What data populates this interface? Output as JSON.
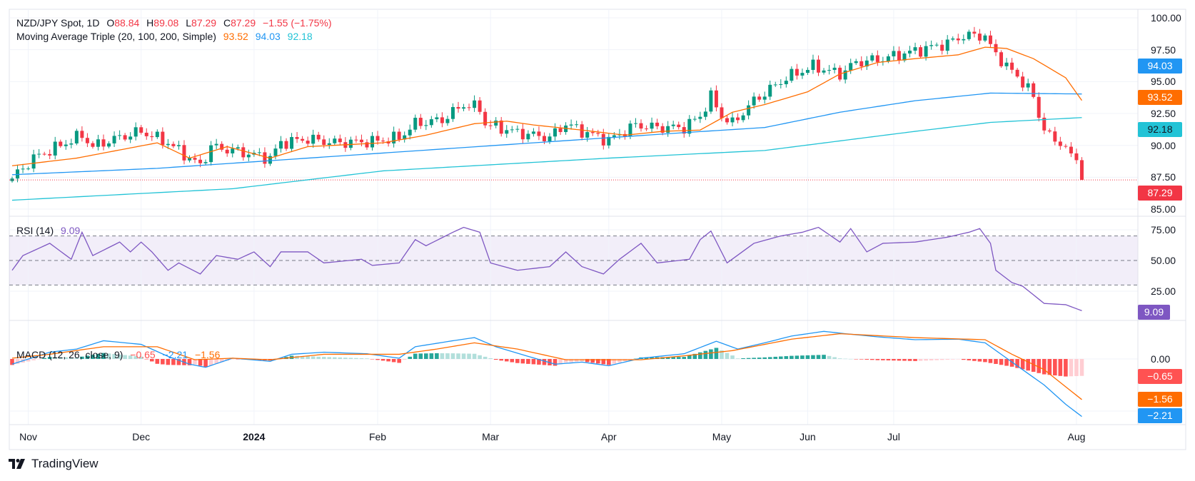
{
  "header": {
    "symbol": "NZD/JPY Spot, 1D",
    "o_label": "O",
    "o": "88.84",
    "h_label": "H",
    "h": "89.08",
    "l_label": "L",
    "l": "87.29",
    "c_label": "C",
    "c": "87.29",
    "change": "−1.55 (−1.75%)",
    "ma_label": "Moving Average Triple (20, 100, 200, Simple)",
    "ma20": "93.52",
    "ma100": "94.03",
    "ma200": "92.18",
    "rsi_label": "RSI (14)",
    "rsi": "9.09",
    "macd_label": "MACD (12, 26, close, 9)",
    "macd_hist": "−0.65",
    "macd": "−2.21",
    "macd_signal": "−1.56"
  },
  "badges": {
    "ma100": "94.03",
    "ma20": "93.52",
    "ma200": "92.18",
    "price": "87.29",
    "rsi": "9.09",
    "hist": "−0.65",
    "signal": "−1.56",
    "macd": "−2.21"
  },
  "logo": "TradingView",
  "colors": {
    "up": "#089981",
    "down": "#f23645",
    "ma20": "#ff6d00",
    "ma100": "#2196f3",
    "ma200": "#22c3d6",
    "rsi": "#7e57c2",
    "macd": "#2196f3",
    "signal": "#ff6d00",
    "hist_up_strong": "#26a69a",
    "hist_up_weak": "#b2dfdb",
    "hist_down_strong": "#ff5252",
    "hist_down_weak": "#ffcdd2"
  },
  "chart_data": {
    "type": "candlestick",
    "title": "NZD/JPY Spot, 1D",
    "bar_count": 200,
    "x_ticks": [
      {
        "label": "Nov",
        "bar": 3
      },
      {
        "label": "Dec",
        "bar": 24
      },
      {
        "label": "2024",
        "bar": 45,
        "bold": true
      },
      {
        "label": "Feb",
        "bar": 68
      },
      {
        "label": "Mar",
        "bar": 89
      },
      {
        "label": "Apr",
        "bar": 111
      },
      {
        "label": "May",
        "bar": 132
      },
      {
        "label": "Jun",
        "bar": 148
      },
      {
        "label": "Jul",
        "bar": 164
      },
      {
        "label": "Aug",
        "bar": 198
      }
    ],
    "price_axis": {
      "ylim": [
        84.2,
        100.6
      ],
      "ticks": [
        "100.00",
        "97.50",
        "95.00",
        "92.50",
        "90.00",
        "87.50",
        "85.00"
      ],
      "tick_values": [
        100,
        97.5,
        95,
        92.5,
        90,
        87.5,
        85
      ]
    },
    "close_anchors": [
      [
        0,
        87.4
      ],
      [
        4,
        89.0
      ],
      [
        7,
        89.6
      ],
      [
        13,
        90.8
      ],
      [
        15,
        89.9
      ],
      [
        19,
        90.5
      ],
      [
        24,
        91.1
      ],
      [
        29,
        90.2
      ],
      [
        33,
        89.0
      ],
      [
        35,
        88.4
      ],
      [
        37,
        89.9
      ],
      [
        41,
        89.6
      ],
      [
        48,
        89.0
      ],
      [
        50,
        90.2
      ],
      [
        55,
        90.5
      ],
      [
        60,
        90.2
      ],
      [
        67,
        90.3
      ],
      [
        72,
        90.6
      ],
      [
        75,
        91.7
      ],
      [
        80,
        92.0
      ],
      [
        84,
        93.2
      ],
      [
        87,
        92.9
      ],
      [
        88,
        91.7
      ],
      [
        94,
        91.0
      ],
      [
        100,
        90.6
      ],
      [
        103,
        91.7
      ],
      [
        106,
        91.1
      ],
      [
        111,
        90.4
      ],
      [
        116,
        91.6
      ],
      [
        120,
        91.4
      ],
      [
        125,
        91.4
      ],
      [
        128,
        92.3
      ],
      [
        130,
        93.8
      ],
      [
        132,
        92.3
      ],
      [
        134,
        91.7
      ],
      [
        138,
        93.5
      ],
      [
        144,
        95.3
      ],
      [
        149,
        96.2
      ],
      [
        154,
        95.6
      ],
      [
        157,
        96.5
      ],
      [
        162,
        96.8
      ],
      [
        168,
        97.4
      ],
      [
        174,
        98.0
      ],
      [
        177,
        98.6
      ],
      [
        181,
        98.6
      ],
      [
        182,
        97.7
      ],
      [
        185,
        96.2
      ],
      [
        188,
        95.0
      ],
      [
        190,
        93.8
      ],
      [
        191,
        92.3
      ],
      [
        193,
        90.6
      ],
      [
        195,
        90.2
      ],
      [
        196,
        89.9
      ],
      [
        198,
        88.84
      ]
    ],
    "last_bar": {
      "open": 88.84,
      "high": 89.08,
      "low": 87.29,
      "close": 87.29
    },
    "ma20_anchors": [
      [
        0,
        88.4
      ],
      [
        12,
        89.0
      ],
      [
        27,
        90.2
      ],
      [
        33,
        89.0
      ],
      [
        40,
        89.9
      ],
      [
        48,
        89.0
      ],
      [
        55,
        89.9
      ],
      [
        69,
        90.2
      ],
      [
        77,
        90.8
      ],
      [
        86,
        91.7
      ],
      [
        92,
        91.9
      ],
      [
        97,
        91.6
      ],
      [
        106,
        91.2
      ],
      [
        114,
        90.8
      ],
      [
        121,
        91.1
      ],
      [
        128,
        91.2
      ],
      [
        134,
        92.6
      ],
      [
        140,
        93.2
      ],
      [
        148,
        94.2
      ],
      [
        154,
        95.6
      ],
      [
        161,
        96.5
      ],
      [
        168,
        96.8
      ],
      [
        176,
        97.1
      ],
      [
        181,
        97.7
      ],
      [
        185,
        97.6
      ],
      [
        190,
        96.8
      ],
      [
        196,
        95.3
      ],
      [
        199,
        93.52
      ]
    ],
    "ma100_anchors": [
      [
        0,
        87.7
      ],
      [
        27,
        88.2
      ],
      [
        69,
        89.4
      ],
      [
        111,
        90.6
      ],
      [
        125,
        91.0
      ],
      [
        140,
        91.4
      ],
      [
        154,
        92.6
      ],
      [
        168,
        93.5
      ],
      [
        182,
        94.1
      ],
      [
        199,
        94.03
      ]
    ],
    "ma200_anchors": [
      [
        0,
        85.7
      ],
      [
        41,
        86.6
      ],
      [
        69,
        88.0
      ],
      [
        111,
        89.0
      ],
      [
        140,
        89.6
      ],
      [
        168,
        91.1
      ],
      [
        182,
        91.8
      ],
      [
        199,
        92.18
      ]
    ],
    "rsi": {
      "ylim": [
        0,
        85
      ],
      "ticks": [
        "75.00",
        "50.00",
        "25.00"
      ],
      "tick_values": [
        75,
        50,
        25
      ],
      "bands": [
        70,
        50,
        30
      ],
      "anchors": [
        [
          0,
          42
        ],
        [
          2,
          54
        ],
        [
          7,
          64
        ],
        [
          11,
          51
        ],
        [
          13,
          73
        ],
        [
          15,
          54
        ],
        [
          20,
          65
        ],
        [
          22,
          57
        ],
        [
          24,
          65
        ],
        [
          26,
          57
        ],
        [
          29,
          42
        ],
        [
          31,
          48
        ],
        [
          35,
          39
        ],
        [
          38,
          54
        ],
        [
          42,
          51
        ],
        [
          45,
          57
        ],
        [
          48,
          45
        ],
        [
          50,
          57
        ],
        [
          55,
          57
        ],
        [
          58,
          48
        ],
        [
          65,
          51
        ],
        [
          67,
          46
        ],
        [
          72,
          48
        ],
        [
          75,
          67
        ],
        [
          77,
          62
        ],
        [
          82,
          73
        ],
        [
          84,
          77
        ],
        [
          87,
          73
        ],
        [
          89,
          48
        ],
        [
          94,
          42
        ],
        [
          100,
          45
        ],
        [
          103,
          57
        ],
        [
          106,
          45
        ],
        [
          110,
          39
        ],
        [
          113,
          51
        ],
        [
          117,
          64
        ],
        [
          120,
          48
        ],
        [
          126,
          51
        ],
        [
          128,
          67
        ],
        [
          130,
          74
        ],
        [
          133,
          48
        ],
        [
          138,
          64
        ],
        [
          143,
          70
        ],
        [
          147,
          73
        ],
        [
          150,
          77
        ],
        [
          154,
          65
        ],
        [
          156,
          76
        ],
        [
          159,
          57
        ],
        [
          162,
          64
        ],
        [
          168,
          65
        ],
        [
          174,
          69
        ],
        [
          178,
          73
        ],
        [
          180,
          76
        ],
        [
          182,
          64
        ],
        [
          183,
          42
        ],
        [
          186,
          32
        ],
        [
          188,
          29
        ],
        [
          192,
          15
        ],
        [
          196,
          14
        ],
        [
          199,
          9.09
        ]
      ]
    },
    "macd": {
      "ylim": [
        -2.5,
        1.6
      ],
      "ticks": [
        "0.00"
      ],
      "tick_values": [
        0
      ],
      "macd_anchors": [
        [
          0,
          -0.2
        ],
        [
          7,
          0.26
        ],
        [
          12,
          0.38
        ],
        [
          17,
          0.7
        ],
        [
          24,
          0.56
        ],
        [
          29,
          0.1
        ],
        [
          33,
          -0.2
        ],
        [
          36,
          -0.32
        ],
        [
          41,
          0.03
        ],
        [
          48,
          -0.09
        ],
        [
          52,
          0.18
        ],
        [
          58,
          0.26
        ],
        [
          66,
          0.2
        ],
        [
          72,
          0.03
        ],
        [
          75,
          0.47
        ],
        [
          82,
          0.7
        ],
        [
          86,
          0.82
        ],
        [
          90,
          0.47
        ],
        [
          96,
          0.1
        ],
        [
          101,
          -0.2
        ],
        [
          106,
          -0.12
        ],
        [
          111,
          -0.26
        ],
        [
          117,
          0.03
        ],
        [
          125,
          0.2
        ],
        [
          131,
          0.68
        ],
        [
          135,
          0.38
        ],
        [
          140,
          0.62
        ],
        [
          145,
          0.88
        ],
        [
          151,
          1.06
        ],
        [
          155,
          0.97
        ],
        [
          161,
          0.85
        ],
        [
          168,
          0.74
        ],
        [
          176,
          0.76
        ],
        [
          181,
          0.62
        ],
        [
          185,
          0.03
        ],
        [
          189,
          -0.56
        ],
        [
          192,
          -1.0
        ],
        [
          196,
          -1.74
        ],
        [
          199,
          -2.21
        ]
      ],
      "signal_anchors": [
        [
          0,
          0.03
        ],
        [
          7,
          0.18
        ],
        [
          17,
          0.47
        ],
        [
          27,
          0.47
        ],
        [
          34,
          -0.03
        ],
        [
          41,
          0.03
        ],
        [
          48,
          -0.03
        ],
        [
          58,
          0.18
        ],
        [
          72,
          0.18
        ],
        [
          79,
          0.38
        ],
        [
          86,
          0.62
        ],
        [
          94,
          0.38
        ],
        [
          103,
          -0.03
        ],
        [
          117,
          -0.03
        ],
        [
          125,
          0.12
        ],
        [
          134,
          0.32
        ],
        [
          145,
          0.76
        ],
        [
          154,
          0.97
        ],
        [
          168,
          0.82
        ],
        [
          181,
          0.74
        ],
        [
          186,
          0.18
        ],
        [
          192,
          -0.41
        ],
        [
          199,
          -1.56
        ]
      ]
    }
  }
}
